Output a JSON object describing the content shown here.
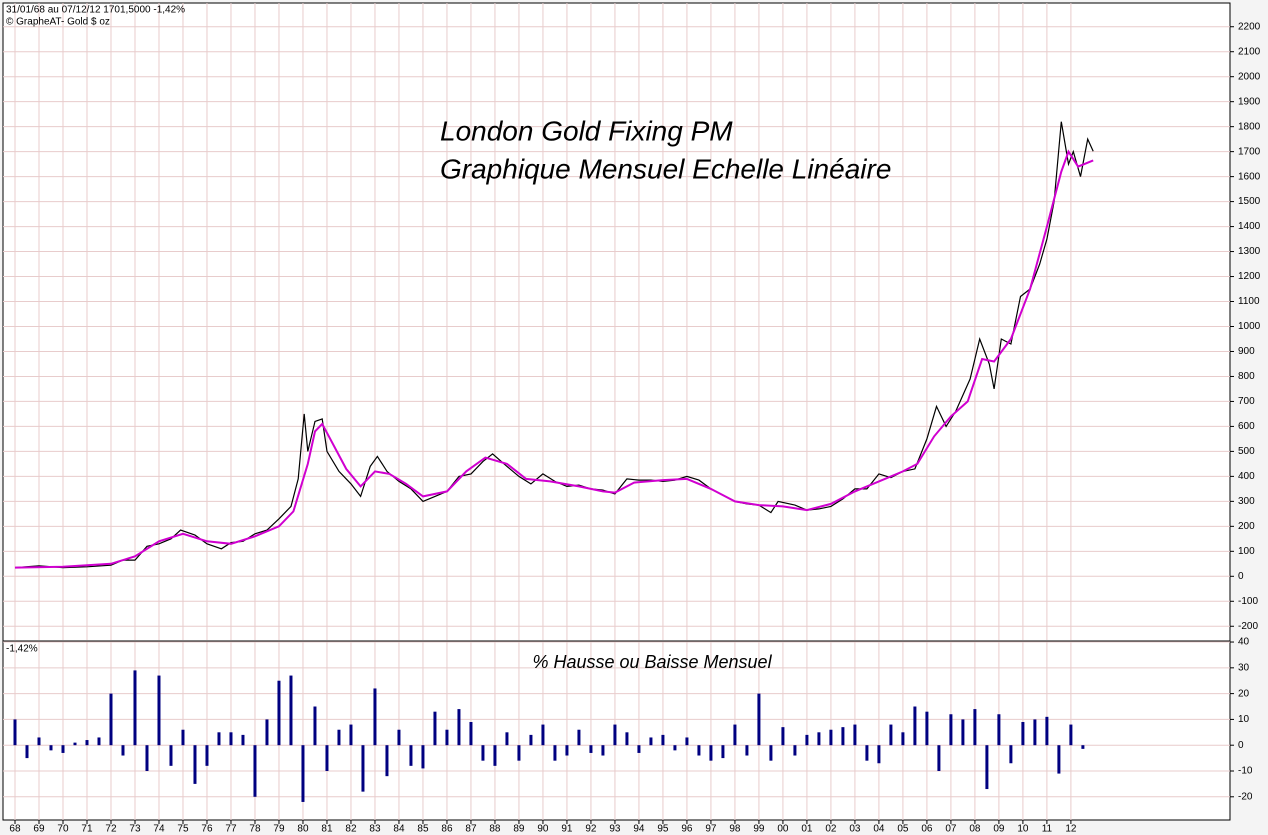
{
  "chart_data": [
    {
      "type": "line",
      "header": "31/01/68 au 07/12/12  1701,5000  -1,42%",
      "subheader": "© GrapheAT- Gold $ oz",
      "title": "London Gold Fixing PM",
      "subtitle": "Graphique Mensuel Echelle Linéaire",
      "xlim": [
        1967.5,
        2018.63
      ],
      "ylim": [
        -255,
        2295
      ],
      "yticks": [
        2200,
        2100,
        2000,
        1900,
        1800,
        1700,
        1600,
        1500,
        1400,
        1300,
        1200,
        1100,
        1000,
        900,
        800,
        700,
        600,
        500,
        400,
        300,
        200,
        100,
        0,
        -100,
        -200
      ],
      "xticks": [
        {
          "value": 1968,
          "label": "68"
        },
        {
          "value": 1969,
          "label": "69"
        },
        {
          "value": 1970,
          "label": "70"
        },
        {
          "value": 1971,
          "label": "71"
        },
        {
          "value": 1972,
          "label": "72"
        },
        {
          "value": 1973,
          "label": "73"
        },
        {
          "value": 1974,
          "label": "74"
        },
        {
          "value": 1975,
          "label": "75"
        },
        {
          "value": 1976,
          "label": "76"
        },
        {
          "value": 1977,
          "label": "77"
        },
        {
          "value": 1978,
          "label": "78"
        },
        {
          "value": 1979,
          "label": "79"
        },
        {
          "value": 1980,
          "label": "80"
        },
        {
          "value": 1981,
          "label": "81"
        },
        {
          "value": 1982,
          "label": "82"
        },
        {
          "value": 1983,
          "label": "83"
        },
        {
          "value": 1984,
          "label": "84"
        },
        {
          "value": 1985,
          "label": "85"
        },
        {
          "value": 1986,
          "label": "86"
        },
        {
          "value": 1987,
          "label": "87"
        },
        {
          "value": 1988,
          "label": "88"
        },
        {
          "value": 1989,
          "label": "89"
        },
        {
          "value": 1990,
          "label": "90"
        },
        {
          "value": 1991,
          "label": "91"
        },
        {
          "value": 1992,
          "label": "92"
        },
        {
          "value": 1993,
          "label": "93"
        },
        {
          "value": 1994,
          "label": "94"
        },
        {
          "value": 1995,
          "label": "95"
        },
        {
          "value": 1996,
          "label": "96"
        },
        {
          "value": 1997,
          "label": "97"
        },
        {
          "value": 1998,
          "label": "98"
        },
        {
          "value": 1999,
          "label": "99"
        },
        {
          "value": 2000,
          "label": "00"
        },
        {
          "value": 2001,
          "label": "01"
        },
        {
          "value": 2002,
          "label": "02"
        },
        {
          "value": 2003,
          "label": "03"
        },
        {
          "value": 2004,
          "label": "04"
        },
        {
          "value": 2005,
          "label": "05"
        },
        {
          "value": 2006,
          "label": "06"
        },
        {
          "value": 2007,
          "label": "07"
        },
        {
          "value": 2008,
          "label": "08"
        },
        {
          "value": 2009,
          "label": "09"
        },
        {
          "value": 2010,
          "label": "10"
        },
        {
          "value": 2011,
          "label": "11"
        },
        {
          "value": 2012,
          "label": "12"
        }
      ],
      "grid": true,
      "series": [
        {
          "color": "#000000",
          "x": [
            1968.0,
            1969,
            1970,
            1971,
            1972,
            1972.5,
            1973,
            1973.5,
            1974,
            1974.5,
            1974.9,
            1975.5,
            1976,
            1976.6,
            1977,
            1977.5,
            1978,
            1978.5,
            1979,
            1979.5,
            1979.8,
            1980.05,
            1980.2,
            1980.5,
            1980.8,
            1981,
            1981.5,
            1982,
            1982.4,
            1982.8,
            1983.1,
            1983.5,
            1984,
            1984.5,
            1985,
            1985.5,
            1986,
            1986.5,
            1987,
            1987.5,
            1987.9,
            1988.5,
            1989,
            1989.5,
            1990,
            1990.5,
            1991,
            1991.5,
            1992,
            1992.5,
            1993,
            1993.5,
            1994,
            1994.5,
            1995,
            1995.5,
            1996,
            1996.5,
            1997,
            1997.5,
            1998,
            1998.5,
            1999,
            1999.5,
            1999.8,
            2000.5,
            2001,
            2001.5,
            2002,
            2002.5,
            2003,
            2003.5,
            2004,
            2004.5,
            2005,
            2005.5,
            2006,
            2006.4,
            2006.8,
            2007.2,
            2007.8,
            2008.2,
            2008.6,
            2008.8,
            2009.1,
            2009.5,
            2009.9,
            2010.3,
            2010.7,
            2011.0,
            2011.3,
            2011.6,
            2011.9,
            2012.1,
            2012.4,
            2012.7,
            2012.93
          ],
          "values": [
            35,
            42,
            35,
            38,
            45,
            65,
            65,
            120,
            130,
            150,
            185,
            165,
            130,
            110,
            135,
            140,
            170,
            185,
            230,
            280,
            390,
            650,
            500,
            620,
            630,
            500,
            420,
            370,
            320,
            440,
            480,
            420,
            380,
            350,
            300,
            320,
            340,
            400,
            410,
            460,
            490,
            440,
            400,
            370,
            410,
            380,
            360,
            365,
            350,
            345,
            330,
            390,
            385,
            385,
            380,
            385,
            400,
            385,
            350,
            325,
            300,
            290,
            285,
            255,
            300,
            285,
            265,
            270,
            280,
            310,
            350,
            350,
            410,
            395,
            420,
            430,
            550,
            680,
            600,
            660,
            790,
            950,
            850,
            750,
            950,
            930,
            1120,
            1150,
            1250,
            1350,
            1500,
            1820,
            1650,
            1700,
            1600,
            1750,
            1701.5
          ]
        },
        {
          "color": "#d000d0",
          "x": [
            1968,
            1970,
            1972,
            1973,
            1974,
            1975,
            1976,
            1977,
            1978,
            1979,
            1979.6,
            1980.2,
            1980.5,
            1980.8,
            1981.3,
            1981.8,
            1982.4,
            1983,
            1983.6,
            1984.3,
            1985,
            1986,
            1986.8,
            1987.6,
            1988.5,
            1989.3,
            1990.3,
            1991.5,
            1992.5,
            1993,
            1993.8,
            1995,
            1996,
            1997,
            1998,
            1999,
            2000,
            2001,
            2002,
            2003,
            2004,
            2005,
            2005.6,
            2006.3,
            2007,
            2007.7,
            2008.3,
            2008.8,
            2009.5,
            2010.3,
            2011,
            2011.6,
            2011.9,
            2012.3,
            2012.93
          ],
          "values": [
            35,
            38,
            50,
            80,
            140,
            170,
            140,
            130,
            160,
            200,
            260,
            450,
            580,
            610,
            520,
            430,
            360,
            420,
            410,
            370,
            320,
            340,
            420,
            475,
            450,
            390,
            380,
            360,
            340,
            335,
            375,
            385,
            390,
            350,
            300,
            285,
            280,
            265,
            290,
            340,
            380,
            420,
            450,
            560,
            640,
            700,
            870,
            860,
            950,
            1150,
            1400,
            1620,
            1700,
            1640,
            1665
          ]
        }
      ]
    },
    {
      "type": "bar",
      "title": "% Hausse ou Baisse Mensuel",
      "annotation": "-1,42%",
      "xlim": [
        1967.5,
        2018.63
      ],
      "ylim": [
        -29,
        40.4
      ],
      "yticks": [
        40,
        30,
        20,
        10,
        0,
        -10,
        -20
      ],
      "color": "#000080",
      "x": [
        1968,
        1968.5,
        1969,
        1969.5,
        1970,
        1970.5,
        1971,
        1971.5,
        1972,
        1972.5,
        1973,
        1973.5,
        1974,
        1974.5,
        1975,
        1975.5,
        1976,
        1976.5,
        1977,
        1977.5,
        1978,
        1978.5,
        1979,
        1979.5,
        1980,
        1980.5,
        1981,
        1981.5,
        1982,
        1982.5,
        1983,
        1983.5,
        1984,
        1984.5,
        1985,
        1985.5,
        1986,
        1986.5,
        1987,
        1987.5,
        1988,
        1988.5,
        1989,
        1989.5,
        1990,
        1990.5,
        1991,
        1991.5,
        1992,
        1992.5,
        1993,
        1993.5,
        1994,
        1994.5,
        1995,
        1995.5,
        1996,
        1996.5,
        1997,
        1997.5,
        1998,
        1998.5,
        1999,
        1999.5,
        2000,
        2000.5,
        2001,
        2001.5,
        2002,
        2002.5,
        2003,
        2003.5,
        2004,
        2004.5,
        2005,
        2005.5,
        2006,
        2006.5,
        2007,
        2007.5,
        2008,
        2008.5,
        2009,
        2009.5,
        2010,
        2010.5,
        2011,
        2011.5,
        2012,
        2012.5
      ],
      "values": [
        10,
        -5,
        3,
        -2,
        -3,
        1,
        2,
        3,
        20,
        -4,
        29,
        -10,
        27,
        -8,
        6,
        -15,
        -8,
        5,
        5,
        4,
        -20,
        10,
        25,
        27,
        -22,
        15,
        -10,
        6,
        8,
        -18,
        22,
        -12,
        6,
        -8,
        -9,
        13,
        6,
        14,
        9,
        -6,
        -8,
        5,
        -6,
        4,
        8,
        -6,
        -4,
        6,
        -3,
        -4,
        8,
        5,
        -3,
        3,
        4,
        -2,
        3,
        -4,
        -6,
        -5,
        8,
        -4,
        20,
        -6,
        7,
        -4,
        4,
        5,
        6,
        7,
        8,
        -6,
        -7,
        8,
        5,
        15,
        13,
        -10,
        12,
        10,
        14,
        -17,
        12,
        -7,
        9,
        10,
        11,
        -11,
        8,
        -1.42
      ]
    }
  ]
}
